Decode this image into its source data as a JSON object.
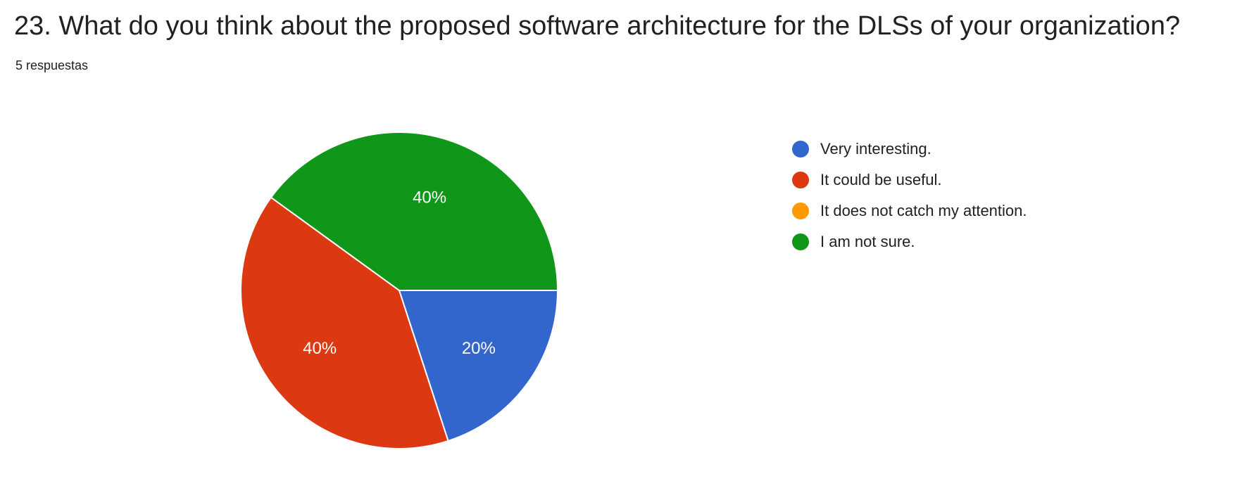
{
  "question": {
    "title": "23. What do you think about the proposed software architecture for the DLSs of your organization?",
    "response_count": "5 respuestas"
  },
  "chart_data": {
    "type": "pie",
    "title": "23. What do you think about the proposed software architecture for the DLSs of your organization?",
    "categories": [
      "Very interesting.",
      "It could be useful.",
      "It does not catch my attention.",
      "I am not sure."
    ],
    "values": [
      20,
      40,
      0,
      40
    ],
    "value_labels": [
      "20%",
      "40%",
      "",
      "40%"
    ],
    "colors": [
      "#3366cc",
      "#dc3912",
      "#ff9900",
      "#109618"
    ],
    "legend_position": "right"
  }
}
